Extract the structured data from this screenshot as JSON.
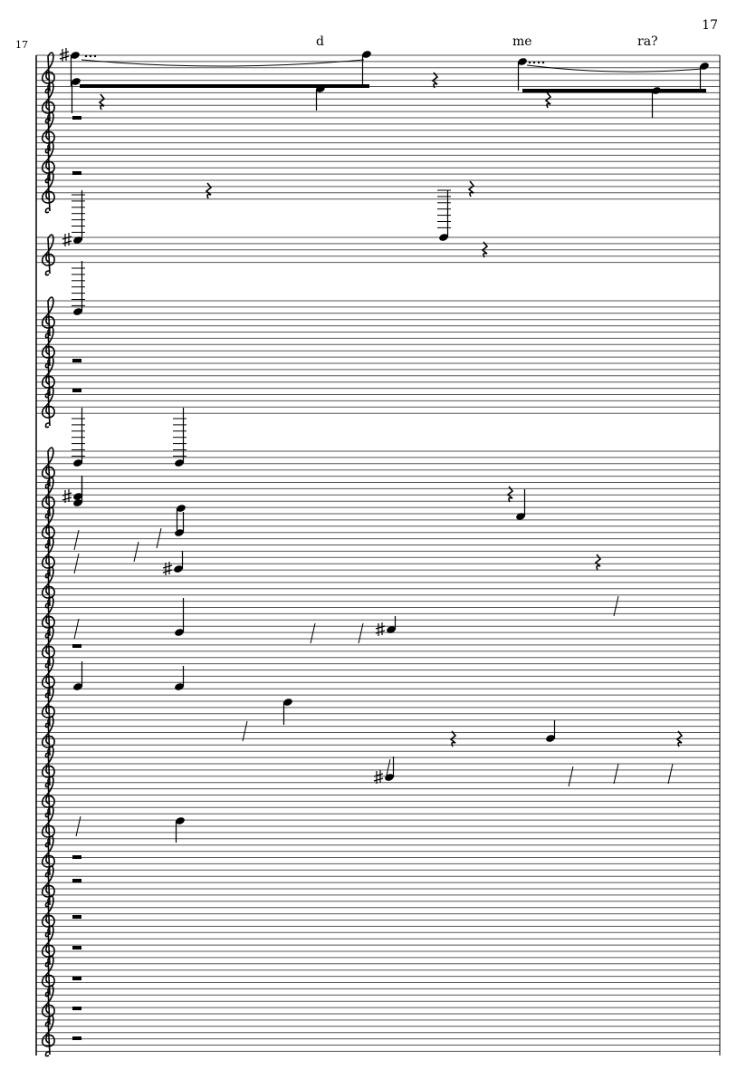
{
  "page": {
    "number": "17"
  },
  "system": {
    "measure_number": "17"
  },
  "lyrics": [
    {
      "text": "d"
    },
    {
      "text": "me"
    },
    {
      "text": "ra?"
    }
  ],
  "colors": {
    "ink": "#000000",
    "staff_line": "#555555",
    "paper": "#ffffff"
  },
  "icons": {
    "clef": "treble-clef-icon",
    "rest": "rest-icon",
    "sharp": "sharp-icon"
  }
}
